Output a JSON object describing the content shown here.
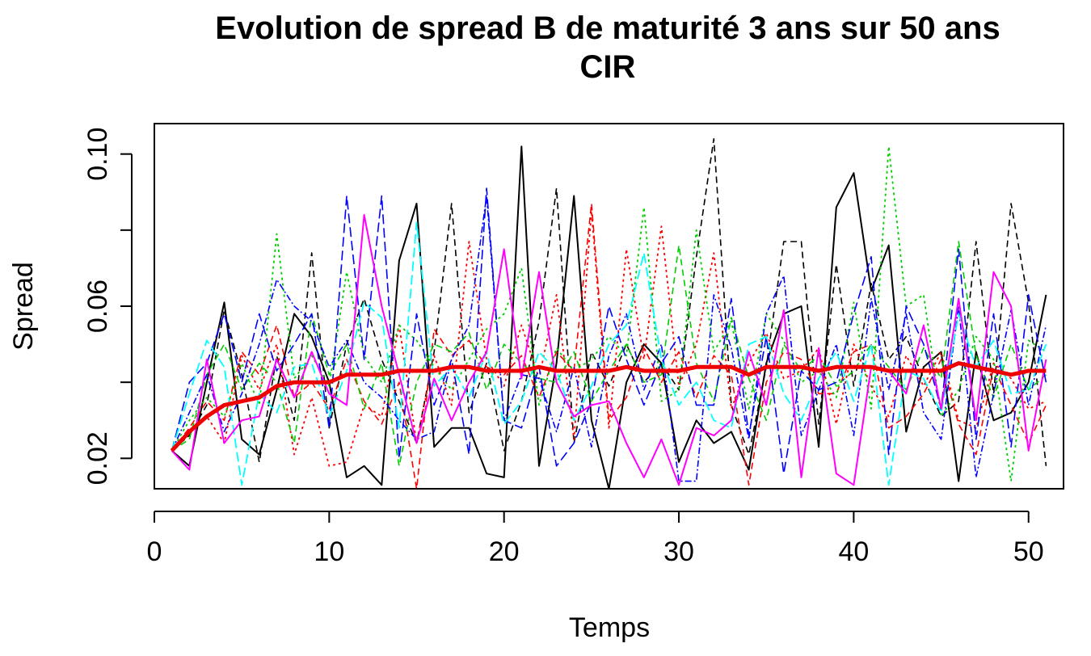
{
  "chart_data": {
    "type": "line",
    "title": "Evolution de spread B de maturité 3 ans sur 50 ans",
    "subtitle": "CIR",
    "xlabel": "Temps",
    "ylabel": "Spread",
    "xlim": [
      0,
      52
    ],
    "ylim": [
      0.012,
      0.108
    ],
    "xticks": [
      0,
      10,
      20,
      30,
      40,
      50
    ],
    "yticks": [
      0.02,
      0.04,
      0.06,
      0.08,
      0.1
    ],
    "ytick_labels": [
      "0.02",
      "",
      "0.06",
      "",
      "0.10"
    ],
    "x": [
      1,
      2,
      3,
      4,
      5,
      6,
      7,
      8,
      9,
      10,
      11,
      12,
      13,
      14,
      15,
      16,
      17,
      18,
      19,
      20,
      21,
      22,
      23,
      24,
      25,
      26,
      27,
      28,
      29,
      30,
      31,
      32,
      33,
      34,
      35,
      36,
      37,
      38,
      39,
      40,
      41,
      42,
      43,
      44,
      45,
      46,
      47,
      48,
      49,
      50,
      51
    ],
    "grid": false,
    "legend": "none",
    "series": [
      {
        "color": "#000000",
        "dash": "solid",
        "width": 2,
        "values": [
          0.022,
          0.018,
          0.04,
          0.061,
          0.025,
          0.021,
          0.038,
          0.058,
          0.052,
          0.04,
          0.015,
          0.018,
          0.013,
          0.072,
          0.087,
          0.023,
          0.028,
          0.028,
          0.016,
          0.015,
          0.102,
          0.018,
          0.045,
          0.089,
          0.03,
          0.012,
          0.04,
          0.05,
          0.045,
          0.019,
          0.03,
          0.024,
          0.027,
          0.017,
          0.045,
          0.058,
          0.06,
          0.023,
          0.086,
          0.095,
          0.064,
          0.076,
          0.027,
          0.044,
          0.048,
          0.014,
          0.048,
          0.03,
          0.032,
          0.04,
          0.063
        ]
      },
      {
        "color": "#000000",
        "dash": "8,5",
        "width": 1.6,
        "values": [
          0.022,
          0.026,
          0.034,
          0.059,
          0.042,
          0.019,
          0.047,
          0.03,
          0.074,
          0.028,
          0.05,
          0.062,
          0.046,
          0.035,
          0.024,
          0.048,
          0.087,
          0.032,
          0.045,
          0.022,
          0.035,
          0.056,
          0.091,
          0.024,
          0.048,
          0.039,
          0.05,
          0.04,
          0.045,
          0.038,
          0.073,
          0.104,
          0.034,
          0.021,
          0.044,
          0.077,
          0.077,
          0.029,
          0.071,
          0.039,
          0.066,
          0.046,
          0.052,
          0.041,
          0.031,
          0.035,
          0.077,
          0.037,
          0.087,
          0.061,
          0.018
        ]
      },
      {
        "color": "#ff0000",
        "dash": "3,4",
        "width": 1.8,
        "values": [
          0.022,
          0.027,
          0.031,
          0.024,
          0.047,
          0.038,
          0.05,
          0.021,
          0.036,
          0.018,
          0.019,
          0.034,
          0.031,
          0.055,
          0.024,
          0.047,
          0.034,
          0.077,
          0.046,
          0.039,
          0.055,
          0.041,
          0.063,
          0.025,
          0.085,
          0.028,
          0.075,
          0.046,
          0.081,
          0.039,
          0.05,
          0.074,
          0.033,
          0.045,
          0.053,
          0.041,
          0.043,
          0.049,
          0.029,
          0.05,
          0.039,
          0.031,
          0.047,
          0.039,
          0.048,
          0.03,
          0.028,
          0.045,
          0.041,
          0.033,
          0.035
        ]
      },
      {
        "color": "#ff0000",
        "dash": "8,5",
        "width": 1.6,
        "values": [
          0.022,
          0.028,
          0.035,
          0.03,
          0.048,
          0.042,
          0.055,
          0.036,
          0.04,
          0.033,
          0.046,
          0.035,
          0.029,
          0.04,
          0.012,
          0.054,
          0.047,
          0.051,
          0.044,
          0.042,
          0.047,
          0.036,
          0.048,
          0.043,
          0.087,
          0.03,
          0.036,
          0.049,
          0.04,
          0.048,
          0.036,
          0.047,
          0.042,
          0.013,
          0.04,
          0.048,
          0.046,
          0.037,
          0.037,
          0.048,
          0.05,
          0.028,
          0.031,
          0.037,
          0.046,
          0.029,
          0.021,
          0.044,
          0.034,
          0.024,
          0.034
        ]
      },
      {
        "color": "#00cd00",
        "dash": "3,4",
        "width": 1.8,
        "values": [
          0.022,
          0.03,
          0.036,
          0.031,
          0.045,
          0.034,
          0.079,
          0.041,
          0.047,
          0.039,
          0.069,
          0.047,
          0.04,
          0.055,
          0.051,
          0.044,
          0.038,
          0.046,
          0.054,
          0.058,
          0.07,
          0.034,
          0.049,
          0.043,
          0.046,
          0.052,
          0.047,
          0.086,
          0.035,
          0.038,
          0.08,
          0.048,
          0.056,
          0.033,
          0.058,
          0.051,
          0.04,
          0.043,
          0.036,
          0.061,
          0.033,
          0.102,
          0.06,
          0.063,
          0.031,
          0.038,
          0.052,
          0.046,
          0.014,
          0.051,
          0.048
        ]
      },
      {
        "color": "#00cd00",
        "dash": "8,5",
        "width": 1.6,
        "values": [
          0.022,
          0.025,
          0.042,
          0.05,
          0.038,
          0.045,
          0.04,
          0.024,
          0.058,
          0.042,
          0.05,
          0.033,
          0.045,
          0.018,
          0.04,
          0.05,
          0.048,
          0.053,
          0.038,
          0.05,
          0.045,
          0.041,
          0.04,
          0.048,
          0.035,
          0.043,
          0.05,
          0.04,
          0.042,
          0.076,
          0.045,
          0.035,
          0.057,
          0.041,
          0.03,
          0.05,
          0.043,
          0.047,
          0.039,
          0.043,
          0.05,
          0.044,
          0.038,
          0.049,
          0.041,
          0.077,
          0.047,
          0.036,
          0.05,
          0.038,
          0.042
        ]
      },
      {
        "color": "#0000ff",
        "dash": "12,5",
        "width": 1.6,
        "values": [
          0.022,
          0.04,
          0.045,
          0.058,
          0.04,
          0.058,
          0.043,
          0.05,
          0.058,
          0.028,
          0.089,
          0.046,
          0.089,
          0.02,
          0.058,
          0.034,
          0.046,
          0.021,
          0.091,
          0.03,
          0.028,
          0.044,
          0.018,
          0.024,
          0.035,
          0.06,
          0.046,
          0.034,
          0.045,
          0.052,
          0.034,
          0.034,
          0.062,
          0.026,
          0.052,
          0.016,
          0.043,
          0.038,
          0.04,
          0.058,
          0.073,
          0.021,
          0.06,
          0.05,
          0.033,
          0.075,
          0.025,
          0.058,
          0.023,
          0.063,
          0.04
        ]
      },
      {
        "color": "#0000ff",
        "dash": "8,3,2,3",
        "width": 1.6,
        "values": [
          0.022,
          0.032,
          0.042,
          0.027,
          0.037,
          0.05,
          0.067,
          0.06,
          0.056,
          0.044,
          0.051,
          0.04,
          0.036,
          0.03,
          0.025,
          0.027,
          0.046,
          0.055,
          0.089,
          0.03,
          0.042,
          0.041,
          0.027,
          0.044,
          0.023,
          0.047,
          0.058,
          0.038,
          0.05,
          0.014,
          0.014,
          0.063,
          0.049,
          0.025,
          0.058,
          0.068,
          0.026,
          0.038,
          0.05,
          0.026,
          0.062,
          0.038,
          0.058,
          0.032,
          0.025,
          0.06,
          0.015,
          0.037,
          0.059,
          0.034,
          0.055
        ]
      },
      {
        "color": "#00ffff",
        "dash": "12,5",
        "width": 1.8,
        "values": [
          0.022,
          0.037,
          0.051,
          0.044,
          0.013,
          0.037,
          0.032,
          0.044,
          0.045,
          0.031,
          0.043,
          0.061,
          0.057,
          0.028,
          0.082,
          0.039,
          0.044,
          0.036,
          0.048,
          0.029,
          0.035,
          0.048,
          0.043,
          0.03,
          0.039,
          0.05,
          0.055,
          0.074,
          0.046,
          0.034,
          0.04,
          0.03,
          0.028,
          0.05,
          0.052,
          0.037,
          0.03,
          0.041,
          0.048,
          0.035,
          0.05,
          0.013,
          0.043,
          0.041,
          0.032,
          0.058,
          0.044,
          0.051,
          0.037,
          0.038,
          0.05
        ]
      },
      {
        "color": "#ff00ff",
        "dash": "solid",
        "width": 2,
        "values": [
          0.022,
          0.017,
          0.046,
          0.024,
          0.03,
          0.031,
          0.046,
          0.036,
          0.048,
          0.037,
          0.034,
          0.084,
          0.06,
          0.042,
          0.024,
          0.041,
          0.03,
          0.04,
          0.048,
          0.075,
          0.041,
          0.069,
          0.04,
          0.031,
          0.034,
          0.035,
          0.024,
          0.015,
          0.025,
          0.013,
          0.028,
          0.026,
          0.03,
          0.048,
          0.034,
          0.059,
          0.015,
          0.049,
          0.016,
          0.013,
          0.044,
          0.043,
          0.037,
          0.055,
          0.033,
          0.062,
          0.03,
          0.069,
          0.06,
          0.022,
          0.046
        ]
      },
      {
        "color": "#ee0000",
        "dash": "solid",
        "width": 5,
        "values": [
          0.022,
          0.027,
          0.031,
          0.034,
          0.035,
          0.036,
          0.039,
          0.04,
          0.04,
          0.04,
          0.042,
          0.042,
          0.042,
          0.043,
          0.043,
          0.043,
          0.044,
          0.044,
          0.043,
          0.043,
          0.043,
          0.044,
          0.043,
          0.043,
          0.043,
          0.043,
          0.044,
          0.043,
          0.043,
          0.043,
          0.044,
          0.044,
          0.044,
          0.042,
          0.044,
          0.044,
          0.044,
          0.043,
          0.044,
          0.044,
          0.044,
          0.043,
          0.043,
          0.043,
          0.043,
          0.045,
          0.044,
          0.043,
          0.042,
          0.043,
          0.043
        ]
      }
    ]
  }
}
